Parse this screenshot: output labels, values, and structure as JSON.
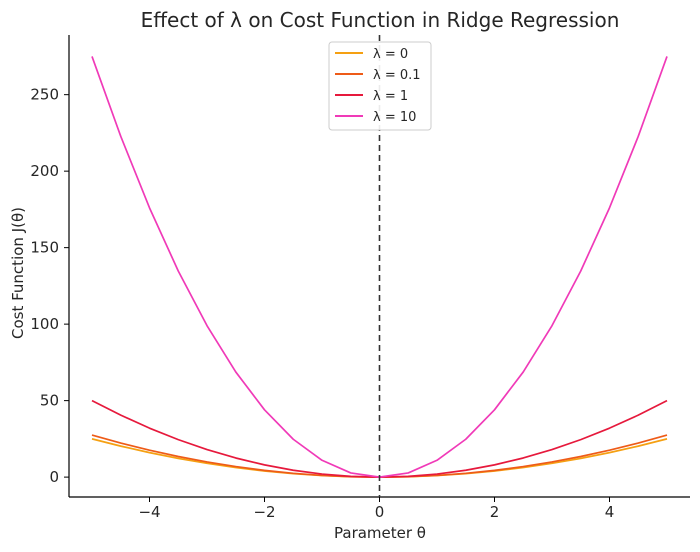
{
  "chart_data": {
    "type": "line",
    "title": "Effect of λ on Cost Function in Ridge Regression",
    "xlabel": "Parameter θ",
    "ylabel": "Cost Function J(θ)",
    "xlim": [
      -5.4,
      5.4
    ],
    "ylim": [
      -13,
      289
    ],
    "xticks": [
      -4,
      -2,
      0,
      2,
      4
    ],
    "xtick_labels": [
      "−4",
      "−2",
      "0",
      "2",
      "4"
    ],
    "yticks": [
      0,
      50,
      100,
      150,
      200,
      250
    ],
    "ytick_labels": [
      "0",
      "50",
      "100",
      "150",
      "200",
      "250"
    ],
    "grid": false,
    "legend_position": "top-center",
    "reference_line": {
      "x": 0,
      "style": "dashed",
      "color": "#333333"
    },
    "x": [
      -5,
      -4.5,
      -4,
      -3.5,
      -3,
      -2.5,
      -2,
      -1.5,
      -1,
      -0.5,
      0,
      0.5,
      1,
      1.5,
      2,
      2.5,
      3,
      3.5,
      4,
      4.5,
      5
    ],
    "series": [
      {
        "name": "λ = 0",
        "color": "#f5a012",
        "values": [
          25,
          20.25,
          16,
          12.25,
          9,
          6.25,
          4,
          2.25,
          1,
          0.25,
          0,
          0.25,
          1,
          2.25,
          4,
          6.25,
          9,
          12.25,
          16,
          20.25,
          25
        ]
      },
      {
        "name": "λ = 0.1",
        "color": "#ee5b18",
        "values": [
          27.5,
          22.28,
          17.6,
          13.48,
          9.9,
          6.88,
          4.4,
          2.48,
          1.1,
          0.28,
          0,
          0.28,
          1.1,
          2.48,
          4.4,
          6.88,
          9.9,
          13.48,
          17.6,
          22.28,
          27.5
        ]
      },
      {
        "name": "λ = 1",
        "color": "#e6193c",
        "values": [
          50,
          40.5,
          32,
          24.5,
          18,
          12.5,
          8,
          4.5,
          2,
          0.5,
          0,
          0.5,
          2,
          4.5,
          8,
          12.5,
          18,
          24.5,
          32,
          40.5,
          50
        ]
      },
      {
        "name": "λ = 10",
        "color": "#f03ab8",
        "values": [
          275,
          222.75,
          176,
          134.75,
          99,
          68.75,
          44,
          24.75,
          11,
          2.75,
          0,
          2.75,
          11,
          24.75,
          44,
          68.75,
          99,
          134.75,
          176,
          222.75,
          275
        ]
      }
    ]
  }
}
